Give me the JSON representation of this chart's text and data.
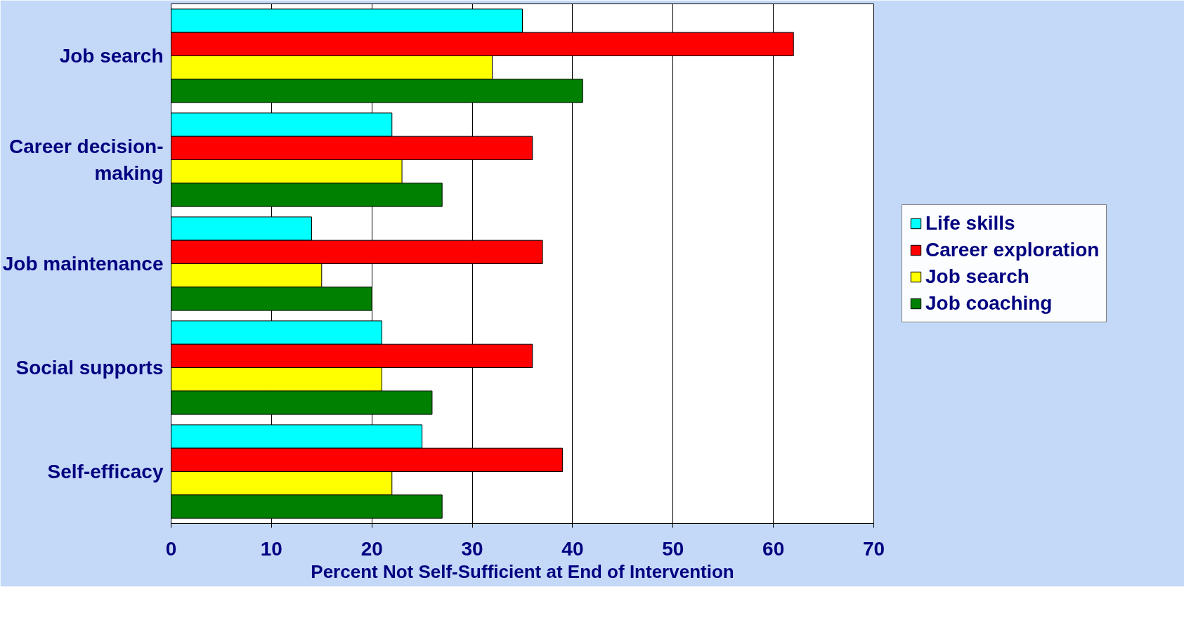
{
  "chart_data": {
    "type": "bar",
    "orientation": "horizontal",
    "xlabel": "Percent Not Self-Sufficient at End of Intervention",
    "categories": [
      "Job search",
      "Career decision-making",
      "Job maintenance",
      "Social supports",
      "Self-efficacy"
    ],
    "series": [
      {
        "name": "Life skills",
        "color": "#00ffff",
        "values": [
          35,
          22,
          14,
          21,
          25
        ]
      },
      {
        "name": "Career exploration",
        "color": "#ff0000",
        "values": [
          62,
          36,
          37,
          36,
          39
        ]
      },
      {
        "name": "Job search",
        "color": "#ffff00",
        "values": [
          32,
          23,
          15,
          21,
          22
        ]
      },
      {
        "name": "Job coaching",
        "color": "#008000",
        "values": [
          41,
          27,
          20,
          26,
          27
        ]
      }
    ],
    "xlim": [
      0,
      70
    ],
    "xticks": [
      0,
      10,
      20,
      30,
      40,
      50,
      60,
      70
    ],
    "grid": "x",
    "legend": "right"
  }
}
